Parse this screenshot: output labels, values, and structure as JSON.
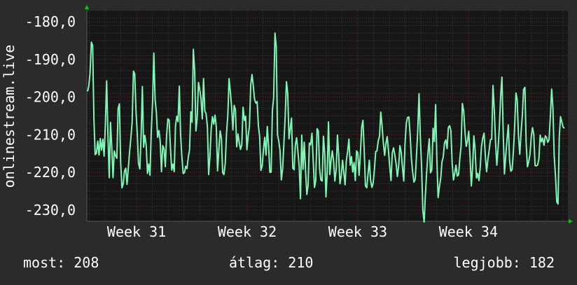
{
  "colors": {
    "background": "#2b2b2b",
    "plot_background": "#161616",
    "grid_major": "#7a1f1f",
    "grid_minor": "#3c3c3c",
    "line": "#7ff5b6",
    "text": "#ffffff",
    "axis_arrow": "#00d000"
  },
  "chart_data": {
    "type": "line",
    "ylabel": "onlinestream.live",
    "ylim": [
      -233,
      -177
    ],
    "yticks": [
      -180,
      -190,
      -200,
      -210,
      -220,
      -230
    ],
    "ytick_labels": [
      "-180,0",
      "-190,0",
      "-200,0",
      "-210,0",
      "-220,0",
      "-230,0"
    ],
    "xlim": [
      30.55,
      34.9
    ],
    "xticks": [
      31,
      32,
      33,
      34
    ],
    "xtick_labels": [
      "Week 31",
      "Week 32",
      "Week 33",
      "Week 34"
    ],
    "grid": true,
    "series": [
      {
        "values": [
          -198.5,
          -197.1,
          -193.6,
          -185.4,
          -186.3,
          -205.6,
          -215.3,
          -214.9,
          -211.7,
          -215.4,
          -211.0,
          -214.1,
          -211.2,
          -215.7,
          -207.1,
          -195.7,
          -209.9,
          -221.4,
          -206.7,
          -213.3,
          -221.4,
          -214.3,
          -215.6,
          -216.3,
          -203.0,
          -201.8,
          -217.4,
          -224.1,
          -223.0,
          -219.7,
          -218.9,
          -223.2,
          -218.7,
          -214.5,
          -210.9,
          -206.7,
          -193.1,
          -193.9,
          -203.6,
          -209.7,
          -217.6,
          -219.1,
          -210.3,
          -197.2,
          -213.3,
          -210.2,
          -212.9,
          -220.3,
          -217.8,
          -220.8,
          -209.2,
          -201.3,
          -188.3,
          -200.6,
          -204.1,
          -210.7,
          -208.9,
          -211.8,
          -219.8,
          -212.9,
          -213.8,
          -218.5,
          -210.3,
          -205.8,
          -206.1,
          -213.4,
          -219.4,
          -217.8,
          -219.8,
          -207.7,
          -205.1,
          -206.5,
          -197.1,
          -209.9,
          -215.8,
          -220.3,
          -220.1,
          -218.4,
          -219.0,
          -216.1,
          -214.0,
          -203.9,
          -206.7,
          -187.3,
          -193.0,
          -209.0,
          -205.6,
          -196.1,
          -197.9,
          -200.5,
          -205.8,
          -195.1,
          -203.7,
          -204.4,
          -207.9,
          -220.6,
          -215.8,
          -208.6,
          -205.2,
          -207.2,
          -204.8,
          -208.0,
          -219.6,
          -214.1,
          -209.0,
          -211.0,
          -220.1,
          -220.6,
          -217.6,
          -209.6,
          -205.0,
          -195.1,
          -198.5,
          -202.7,
          -208.7,
          -202.2,
          -203.3,
          -213.2,
          -209.8,
          -212.2,
          -213.9,
          -212.6,
          -202.7,
          -206.2,
          -205.1,
          -214.0,
          -210.3,
          -207.8,
          -196.7,
          -194.0,
          -197.0,
          -200.6,
          -201.6,
          -201.2,
          -207.6,
          -210.5,
          -219.5,
          -218.2,
          -213.8,
          -210.7,
          -215.4,
          -207.8,
          -213.2,
          -220.0,
          -219.9,
          -203.6,
          -200.1,
          -183.0,
          -186.6,
          -210.0,
          -211.7,
          -214.2,
          -222.0,
          -219.1,
          -212.4,
          -205.4,
          -195.9,
          -199.1,
          -211.1,
          -208.3,
          -205.6,
          -218.9,
          -219.3,
          -212.7,
          -210.8,
          -214.4,
          -218.6,
          -227.0,
          -210.1,
          -219.2,
          -212.0,
          -219.8,
          -225.9,
          -223.4,
          -212.2,
          -212.7,
          -209.6,
          -216.9,
          -224.0,
          -222.2,
          -208.4,
          -209.0,
          -219.1,
          -222.0,
          -222.3,
          -210.4,
          -215.1,
          -226.5,
          -220.0,
          -206.6,
          -220.6,
          -216.8,
          -214.3,
          -217.1,
          -222.3,
          -219.2,
          -210.1,
          -215.6,
          -223.0,
          -220.8,
          -216.8,
          -220.0,
          -223.3,
          -216.9,
          -214.3,
          -211.2,
          -218.1,
          -215.8,
          -219.9,
          -217.4,
          -222.2,
          -214.3,
          -214.8,
          -220.8,
          -215.0,
          -208.0,
          -206.2,
          -214.1,
          -223.6,
          -224.1,
          -220.4,
          -216.8,
          -222.1,
          -224.0,
          -222.8,
          -219.3,
          -214.5,
          -214.3,
          -211.6,
          -210.4,
          -204.0,
          -207.6,
          -212.1,
          -215.5,
          -212.4,
          -210.5,
          -214.1,
          -218.4,
          -222.2,
          -214.8,
          -213.5,
          -215.4,
          -217.6,
          -221.1,
          -218.3,
          -212.9,
          -214.6,
          -218.8,
          -222.3,
          -212.4,
          -207.0,
          -205.4,
          -205.3,
          -210.0,
          -216.3,
          -219.9,
          -222.6,
          -221.8,
          -215.5,
          -208.8,
          -199.1,
          -210.2,
          -218.7,
          -230.2,
          -233.2,
          -226.0,
          -220.0,
          -214.8,
          -211.1,
          -220.1,
          -219.4,
          -208.3,
          -211.8,
          -202.0,
          -216.7,
          -226.7,
          -223.7,
          -221.6,
          -217.2,
          -215.9,
          -212.2,
          -211.4,
          -213.7,
          -208.1,
          -207.6,
          -208.9,
          -217.9,
          -222.0,
          -220.2,
          -218.1,
          -221.0,
          -220.6,
          -216.3,
          -213.0,
          -201.7,
          -203.7,
          -209.2,
          -213.1,
          -211.6,
          -209.1,
          -216.0,
          -223.6,
          -218.7,
          -210.3,
          -214.0,
          -221.5,
          -220.3,
          -222.2,
          -218.7,
          -213.1,
          -210.8,
          -209.6,
          -215.6,
          -219.8,
          -216.7,
          -214.0,
          -211.3,
          -211.2,
          -196.9,
          -203.6,
          -212.1,
          -218.1,
          -213.7,
          -208.0,
          -199.7,
          -194.7,
          -209.4,
          -220.4,
          -215.7,
          -211.2,
          -207.4,
          -216.8,
          -219.7,
          -219.3,
          -214.4,
          -207.7,
          -198.9,
          -200.8,
          -210.3,
          -215.2,
          -209.5,
          -205.0,
          -198.0,
          -197.4,
          -212.3,
          -218.5,
          -217.2,
          -215.3,
          -210.5,
          -208.1,
          -210.0,
          -218.2,
          -218.3,
          -218.0,
          -216.4,
          -210.1,
          -211.9,
          -210.9,
          -212.8,
          -210.3,
          -210.7,
          -212.0,
          -211.3,
          -205.0,
          -197.9,
          -202.9,
          -215.5,
          -221.1,
          -227.8,
          -228.4,
          -210.5,
          -205.2,
          -206.7,
          -208.0,
          -208.3
        ]
      }
    ]
  },
  "footer": {
    "current": "most: 208",
    "average": "átlag: 210",
    "best": "legjobb: 182"
  }
}
